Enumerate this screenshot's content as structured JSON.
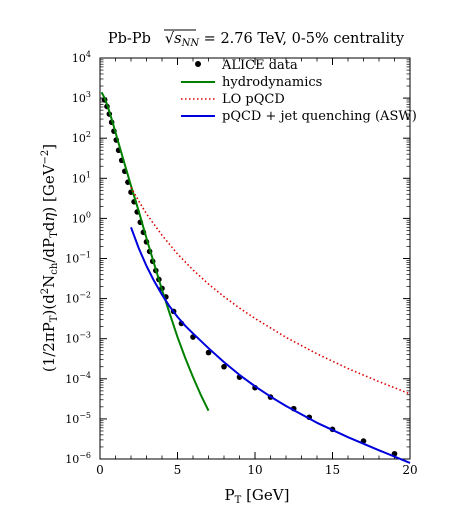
{
  "chart_data": {
    "type": "line",
    "title": "Pb-Pb  √s_NN = 2.76 TeV, 0-5% centrality",
    "title_parts": {
      "prefix": "Pb-Pb",
      "sqrt_symbol": "√",
      "s_var": "s",
      "s_sub": "NN",
      "suffix": " = 2.76 TeV, 0-5% centrality"
    },
    "xlabel": "P",
    "xlabel_sub": "T",
    "xlabel_unit": " [GeV]",
    "ylabel": "(1/2πP_T)(d²N_ch/dP_T dη) [GeV⁻²]",
    "ylabel_parts": {
      "p1": "(1/2πP",
      "p1sub": "T",
      "p2": ")(d",
      "p2sup": "2",
      "p3": "N",
      "p3sub": "ch",
      "p4": "/dP",
      "p4sub": "T",
      "p5": "d",
      "p5eta": "η",
      "p6": ") [GeV",
      "p6sup": "−2",
      "p7": "]"
    },
    "xlim": [
      0,
      20
    ],
    "ylim": [
      1e-06,
      10000.0
    ],
    "yscale": "log",
    "grid": false,
    "legend_position": "top-right",
    "x_ticks": [
      0,
      5,
      10,
      15,
      20
    ],
    "y_ticks_exp": [
      -6,
      -5,
      -4,
      -3,
      -2,
      -1,
      0,
      1,
      2,
      3,
      4
    ],
    "y_tick_base": "10",
    "series": [
      {
        "name": "ALICE data",
        "kind": "points",
        "color": "#000000",
        "x": [
          0.3,
          0.45,
          0.6,
          0.75,
          0.9,
          1.05,
          1.2,
          1.4,
          1.6,
          1.8,
          2.0,
          2.2,
          2.4,
          2.6,
          2.8,
          3.0,
          3.2,
          3.4,
          3.6,
          3.8,
          4.0,
          4.25,
          4.75,
          5.25,
          6.0,
          7.0,
          8.0,
          9.0,
          10.0,
          11.0,
          12.5,
          13.5,
          15.0,
          17.0,
          19.0
        ],
        "y": [
          900,
          620,
          400,
          250,
          150,
          90,
          50,
          28,
          15,
          8,
          4.5,
          2.6,
          1.45,
          0.8,
          0.45,
          0.26,
          0.15,
          0.085,
          0.05,
          0.03,
          0.018,
          0.011,
          0.0048,
          0.0024,
          0.0011,
          0.00045,
          0.0002,
          0.00011,
          6e-05,
          3.5e-05,
          1.8e-05,
          1.1e-05,
          5.5e-06,
          2.8e-06,
          1.35e-06
        ]
      },
      {
        "name": "hydrodynamics",
        "kind": "line",
        "color": "#008000",
        "dash": "solid",
        "x": [
          0.1,
          0.3,
          0.5,
          0.8,
          1.0,
          1.3,
          1.6,
          2.0,
          2.5,
          3.0,
          3.5,
          4.0,
          4.5,
          5.0,
          5.5,
          6.0,
          6.5,
          7.0
        ],
        "y": [
          1400,
          1000,
          620,
          260,
          140,
          55,
          22,
          6.5,
          1.5,
          0.32,
          0.072,
          0.0165,
          0.0042,
          0.0011,
          0.00033,
          0.00011,
          4e-05,
          1.6e-05
        ]
      },
      {
        "name": "LO pQCD",
        "kind": "line",
        "color": "#dd0000",
        "dash": "dotted",
        "x": [
          2.0,
          2.5,
          3.0,
          3.5,
          4.0,
          5.0,
          6.0,
          7.0,
          8.0,
          9.0,
          10.0,
          12.0,
          14.0,
          16.0,
          18.0,
          20.0
        ],
        "y": [
          6.0,
          2.7,
          1.3,
          0.7,
          0.38,
          0.13,
          0.052,
          0.023,
          0.0112,
          0.0058,
          0.0032,
          0.00108,
          0.00042,
          0.00018,
          8.5e-05,
          4.2e-05
        ]
      },
      {
        "name": "pQCD + jet quenching (ASW)",
        "kind": "line",
        "color": "#0000dd",
        "dash": "solid",
        "x": [
          2.0,
          2.5,
          3.0,
          3.5,
          4.0,
          4.5,
          5.0,
          5.5,
          6.0,
          7.0,
          8.0,
          9.0,
          10.0,
          11.0,
          12.0,
          14.0,
          16.0,
          18.0,
          20.0
        ],
        "y": [
          0.6,
          0.18,
          0.065,
          0.027,
          0.0125,
          0.0063,
          0.0035,
          0.0021,
          0.00135,
          0.00058,
          0.00026,
          0.000125,
          6.5e-05,
          3.6e-05,
          2.1e-05,
          8e-06,
          3.5e-06,
          1.65e-06,
          8e-07
        ]
      }
    ]
  }
}
